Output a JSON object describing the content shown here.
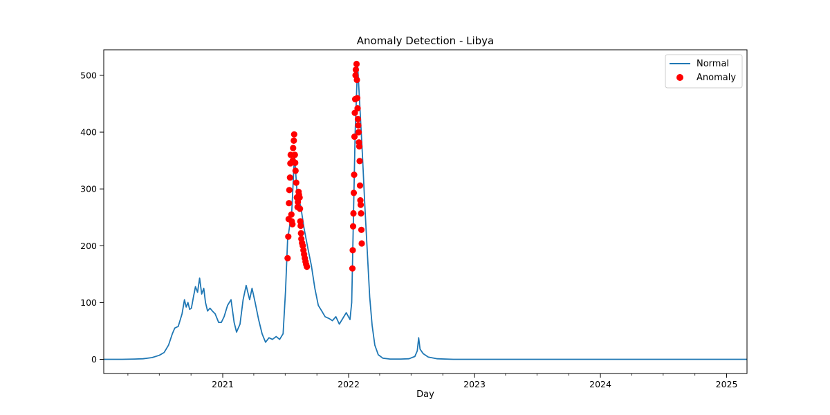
{
  "chart_data": {
    "type": "line",
    "title": "Anomaly Detection - Libya",
    "xlabel": "Day",
    "ylabel": "",
    "x_range": [
      "2020-01-22",
      "2025-03-01"
    ],
    "y_range": [
      -25,
      545
    ],
    "x_ticks": [
      {
        "date": "2021-01-01",
        "label": "2021"
      },
      {
        "date": "2022-01-01",
        "label": "2022"
      },
      {
        "date": "2023-01-01",
        "label": "2023"
      },
      {
        "date": "2024-01-01",
        "label": "2024"
      },
      {
        "date": "2025-01-01",
        "label": "2025"
      }
    ],
    "y_ticks": [
      0,
      100,
      200,
      300,
      400,
      500
    ],
    "legend": {
      "position": "top-right"
    },
    "grid": false,
    "series": [
      {
        "name": "Normal",
        "type": "line",
        "color": "#1f77b4",
        "points": [
          [
            "2020-01-22",
            0
          ],
          [
            "2020-03-15",
            0
          ],
          [
            "2020-04-20",
            0.5
          ],
          [
            "2020-05-15",
            1
          ],
          [
            "2020-06-10",
            3
          ],
          [
            "2020-07-01",
            7
          ],
          [
            "2020-07-15",
            12
          ],
          [
            "2020-07-28",
            25
          ],
          [
            "2020-08-08",
            45
          ],
          [
            "2020-08-15",
            55
          ],
          [
            "2020-08-25",
            58
          ],
          [
            "2020-09-05",
            80
          ],
          [
            "2020-09-12",
            105
          ],
          [
            "2020-09-17",
            92
          ],
          [
            "2020-09-22",
            100
          ],
          [
            "2020-09-27",
            88
          ],
          [
            "2020-10-02",
            90
          ],
          [
            "2020-10-08",
            110
          ],
          [
            "2020-10-14",
            128
          ],
          [
            "2020-10-20",
            118
          ],
          [
            "2020-10-26",
            143
          ],
          [
            "2020-11-01",
            115
          ],
          [
            "2020-11-07",
            125
          ],
          [
            "2020-11-12",
            100
          ],
          [
            "2020-11-18",
            85
          ],
          [
            "2020-11-25",
            90
          ],
          [
            "2020-12-02",
            85
          ],
          [
            "2020-12-10",
            80
          ],
          [
            "2020-12-20",
            65
          ],
          [
            "2020-12-28",
            65
          ],
          [
            "2021-01-05",
            75
          ],
          [
            "2021-01-15",
            95
          ],
          [
            "2021-01-25",
            105
          ],
          [
            "2021-02-03",
            65
          ],
          [
            "2021-02-10",
            48
          ],
          [
            "2021-02-20",
            62
          ],
          [
            "2021-03-01",
            105
          ],
          [
            "2021-03-10",
            130
          ],
          [
            "2021-03-20",
            105
          ],
          [
            "2021-03-27",
            125
          ],
          [
            "2021-04-05",
            100
          ],
          [
            "2021-04-15",
            70
          ],
          [
            "2021-04-25",
            45
          ],
          [
            "2021-05-05",
            30
          ],
          [
            "2021-05-15",
            38
          ],
          [
            "2021-05-25",
            35
          ],
          [
            "2021-06-05",
            40
          ],
          [
            "2021-06-15",
            35
          ],
          [
            "2021-06-25",
            45
          ],
          [
            "2021-07-02",
            120
          ],
          [
            "2021-07-08",
            210
          ],
          [
            "2021-07-20",
            260
          ],
          [
            "2021-07-28",
            360
          ],
          [
            "2021-08-05",
            290
          ],
          [
            "2021-08-15",
            270
          ],
          [
            "2021-08-25",
            230
          ],
          [
            "2021-09-05",
            195
          ],
          [
            "2021-09-15",
            165
          ],
          [
            "2021-09-25",
            125
          ],
          [
            "2021-10-05",
            95
          ],
          [
            "2021-10-15",
            85
          ],
          [
            "2021-10-25",
            75
          ],
          [
            "2021-11-05",
            72
          ],
          [
            "2021-11-15",
            68
          ],
          [
            "2021-11-25",
            75
          ],
          [
            "2021-12-05",
            62
          ],
          [
            "2021-12-15",
            72
          ],
          [
            "2021-12-25",
            82
          ],
          [
            "2022-01-05",
            70
          ],
          [
            "2022-01-10",
            100
          ],
          [
            "2022-01-15",
            250
          ],
          [
            "2022-01-20",
            400
          ],
          [
            "2022-01-27",
            520
          ],
          [
            "2022-02-03",
            440
          ],
          [
            "2022-02-10",
            360
          ],
          [
            "2022-02-17",
            270
          ],
          [
            "2022-02-24",
            190
          ],
          [
            "2022-03-03",
            110
          ],
          [
            "2022-03-10",
            60
          ],
          [
            "2022-03-18",
            25
          ],
          [
            "2022-03-28",
            8
          ],
          [
            "2022-04-10",
            2
          ],
          [
            "2022-05-01",
            0.5
          ],
          [
            "2022-06-01",
            0.5
          ],
          [
            "2022-06-25",
            1
          ],
          [
            "2022-07-12",
            5
          ],
          [
            "2022-07-19",
            15
          ],
          [
            "2022-07-23",
            38
          ],
          [
            "2022-07-27",
            18
          ],
          [
            "2022-08-05",
            10
          ],
          [
            "2022-08-20",
            4
          ],
          [
            "2022-09-15",
            1
          ],
          [
            "2022-11-01",
            0
          ],
          [
            "2023-06-01",
            0
          ],
          [
            "2024-06-01",
            0
          ],
          [
            "2025-03-01",
            0
          ]
        ]
      },
      {
        "name": "Anomaly",
        "type": "scatter",
        "color": "#ff0000",
        "points": [
          [
            "2021-07-08",
            178
          ],
          [
            "2021-07-10",
            216
          ],
          [
            "2021-07-11",
            247
          ],
          [
            "2021-07-12",
            275
          ],
          [
            "2021-07-13",
            298
          ],
          [
            "2021-07-15",
            320
          ],
          [
            "2021-07-16",
            345
          ],
          [
            "2021-07-17",
            360
          ],
          [
            "2021-07-19",
            255
          ],
          [
            "2021-07-20",
            243
          ],
          [
            "2021-07-22",
            238
          ],
          [
            "2021-07-23",
            350
          ],
          [
            "2021-07-24",
            372
          ],
          [
            "2021-07-26",
            385
          ],
          [
            "2021-07-27",
            396
          ],
          [
            "2021-07-29",
            360
          ],
          [
            "2021-07-30",
            346
          ],
          [
            "2021-07-31",
            332
          ],
          [
            "2021-08-02",
            311
          ],
          [
            "2021-08-04",
            285
          ],
          [
            "2021-08-06",
            268
          ],
          [
            "2021-08-07",
            277
          ],
          [
            "2021-08-09",
            295
          ],
          [
            "2021-08-10",
            290
          ],
          [
            "2021-08-12",
            285
          ],
          [
            "2021-08-13",
            265
          ],
          [
            "2021-08-14",
            243
          ],
          [
            "2021-08-15",
            235
          ],
          [
            "2021-08-16",
            222
          ],
          [
            "2021-08-17",
            212
          ],
          [
            "2021-08-19",
            205
          ],
          [
            "2021-08-21",
            200
          ],
          [
            "2021-08-23",
            192
          ],
          [
            "2021-08-25",
            185
          ],
          [
            "2021-08-27",
            178
          ],
          [
            "2021-08-29",
            172
          ],
          [
            "2021-08-31",
            167
          ],
          [
            "2021-09-02",
            163
          ],
          [
            "2022-01-12",
            160
          ],
          [
            "2022-01-13",
            192
          ],
          [
            "2022-01-14",
            234
          ],
          [
            "2022-01-15",
            257
          ],
          [
            "2022-01-16",
            293
          ],
          [
            "2022-01-17",
            325
          ],
          [
            "2022-01-18",
            392
          ],
          [
            "2022-01-19",
            434
          ],
          [
            "2022-01-20",
            458
          ],
          [
            "2022-01-21",
            500
          ],
          [
            "2022-01-22",
            510
          ],
          [
            "2022-01-24",
            520
          ],
          [
            "2022-01-25",
            492
          ],
          [
            "2022-01-26",
            460
          ],
          [
            "2022-01-27",
            442
          ],
          [
            "2022-01-28",
            423
          ],
          [
            "2022-01-29",
            412
          ],
          [
            "2022-01-30",
            400
          ],
          [
            "2022-01-31",
            382
          ],
          [
            "2022-02-01",
            375
          ],
          [
            "2022-02-02",
            349
          ],
          [
            "2022-02-03",
            306
          ],
          [
            "2022-02-04",
            280
          ],
          [
            "2022-02-05",
            272
          ],
          [
            "2022-02-06",
            257
          ],
          [
            "2022-02-07",
            228
          ],
          [
            "2022-02-08",
            204
          ]
        ]
      }
    ]
  }
}
